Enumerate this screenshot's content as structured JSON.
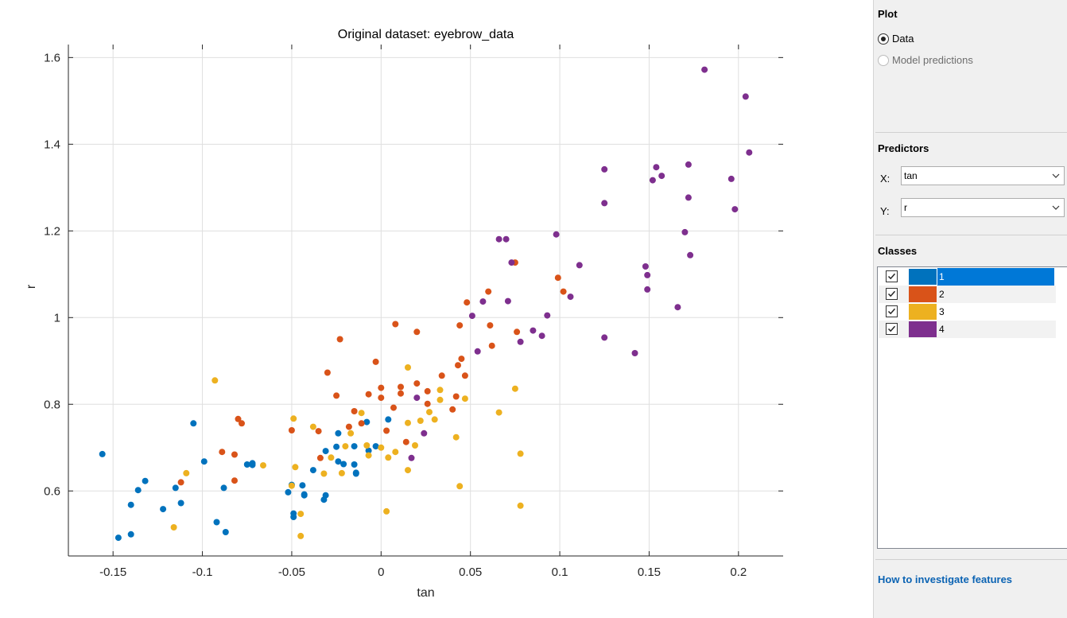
{
  "chart_data": {
    "type": "scatter",
    "title": "Original dataset: eyebrow_data",
    "xlabel": "tan",
    "ylabel": "r",
    "xlim": [
      -0.175,
      0.225
    ],
    "ylim": [
      0.45,
      1.63
    ],
    "xticks": [
      -0.15,
      -0.1,
      -0.05,
      0,
      0.05,
      0.1,
      0.15,
      0.2
    ],
    "xtick_labels": [
      "-0.15",
      "-0.1",
      "-0.05",
      "0",
      "0.05",
      "0.1",
      "0.15",
      "0.2"
    ],
    "yticks": [
      0.6,
      0.8,
      1.0,
      1.2,
      1.4,
      1.6
    ],
    "ytick_labels": [
      "0.6",
      "0.8",
      "1",
      "1.2",
      "1.4",
      "1.6"
    ],
    "grid": true,
    "series": [
      {
        "name": "1",
        "color": "#0072BD",
        "points": [
          [
            -0.156,
            0.685
          ],
          [
            -0.147,
            0.492
          ],
          [
            -0.14,
            0.568
          ],
          [
            -0.14,
            0.5
          ],
          [
            -0.136,
            0.602
          ],
          [
            -0.132,
            0.623
          ],
          [
            -0.122,
            0.558
          ],
          [
            -0.115,
            0.607
          ],
          [
            -0.112,
            0.572
          ],
          [
            -0.105,
            0.756
          ],
          [
            -0.099,
            0.668
          ],
          [
            -0.092,
            0.528
          ],
          [
            -0.088,
            0.607
          ],
          [
            -0.087,
            0.505
          ],
          [
            -0.075,
            0.661
          ],
          [
            -0.072,
            0.664
          ],
          [
            -0.072,
            0.66
          ],
          [
            -0.052,
            0.597
          ],
          [
            -0.05,
            0.614
          ],
          [
            -0.049,
            0.548
          ],
          [
            -0.049,
            0.54
          ],
          [
            -0.044,
            0.613
          ],
          [
            -0.043,
            0.592
          ],
          [
            -0.043,
            0.59
          ],
          [
            -0.038,
            0.648
          ],
          [
            -0.032,
            0.58
          ],
          [
            -0.031,
            0.59
          ],
          [
            -0.031,
            0.692
          ],
          [
            -0.025,
            0.702
          ],
          [
            -0.024,
            0.733
          ],
          [
            -0.024,
            0.668
          ],
          [
            -0.021,
            0.662
          ],
          [
            -0.015,
            0.703
          ],
          [
            -0.015,
            0.661
          ],
          [
            -0.014,
            0.642
          ],
          [
            -0.014,
            0.64
          ],
          [
            -0.008,
            0.759
          ],
          [
            -0.007,
            0.693
          ],
          [
            -0.003,
            0.703
          ],
          [
            0.004,
            0.765
          ]
        ]
      },
      {
        "name": "2",
        "color": "#D95319",
        "points": [
          [
            -0.112,
            0.62
          ],
          [
            -0.089,
            0.69
          ],
          [
            -0.082,
            0.684
          ],
          [
            -0.082,
            0.624
          ],
          [
            -0.08,
            0.766
          ],
          [
            -0.078,
            0.756
          ],
          [
            -0.05,
            0.74
          ],
          [
            -0.035,
            0.738
          ],
          [
            -0.034,
            0.676
          ],
          [
            -0.03,
            0.873
          ],
          [
            -0.025,
            0.82
          ],
          [
            -0.023,
            0.95
          ],
          [
            -0.018,
            0.748
          ],
          [
            -0.015,
            0.784
          ],
          [
            -0.011,
            0.756
          ],
          [
            -0.007,
            0.823
          ],
          [
            -0.003,
            0.898
          ],
          [
            0,
            0.838
          ],
          [
            0,
            0.815
          ],
          [
            0.003,
            0.739
          ],
          [
            0.007,
            0.792
          ],
          [
            0.008,
            0.985
          ],
          [
            0.011,
            0.84
          ],
          [
            0.011,
            0.825
          ],
          [
            0.014,
            0.713
          ],
          [
            0.02,
            0.967
          ],
          [
            0.02,
            0.848
          ],
          [
            0.026,
            0.83
          ],
          [
            0.026,
            0.801
          ],
          [
            0.034,
            0.866
          ],
          [
            0.04,
            0.788
          ],
          [
            0.042,
            0.818
          ],
          [
            0.043,
            0.89
          ],
          [
            0.044,
            0.982
          ],
          [
            0.045,
            0.905
          ],
          [
            0.047,
            0.866
          ],
          [
            0.048,
            1.035
          ],
          [
            0.06,
            1.06
          ],
          [
            0.061,
            0.982
          ],
          [
            0.062,
            0.935
          ],
          [
            0.075,
            1.127
          ],
          [
            0.076,
            0.967
          ],
          [
            0.099,
            1.092
          ],
          [
            0.102,
            1.06
          ]
        ]
      },
      {
        "name": "3",
        "color": "#EDB120",
        "points": [
          [
            -0.116,
            0.516
          ],
          [
            -0.109,
            0.641
          ],
          [
            -0.093,
            0.855
          ],
          [
            -0.066,
            0.659
          ],
          [
            -0.05,
            0.612
          ],
          [
            -0.049,
            0.767
          ],
          [
            -0.048,
            0.655
          ],
          [
            -0.045,
            0.496
          ],
          [
            -0.045,
            0.547
          ],
          [
            -0.038,
            0.748
          ],
          [
            -0.032,
            0.64
          ],
          [
            -0.028,
            0.677
          ],
          [
            -0.022,
            0.641
          ],
          [
            -0.02,
            0.703
          ],
          [
            -0.017,
            0.733
          ],
          [
            -0.011,
            0.78
          ],
          [
            -0.008,
            0.705
          ],
          [
            -0.007,
            0.682
          ],
          [
            0,
            0.7
          ],
          [
            0.003,
            0.553
          ],
          [
            0.004,
            0.677
          ],
          [
            0.008,
            0.69
          ],
          [
            0.015,
            0.648
          ],
          [
            0.015,
            0.757
          ],
          [
            0.015,
            0.885
          ],
          [
            0.019,
            0.705
          ],
          [
            0.022,
            0.762
          ],
          [
            0.027,
            0.782
          ],
          [
            0.03,
            0.765
          ],
          [
            0.033,
            0.833
          ],
          [
            0.033,
            0.81
          ],
          [
            0.042,
            0.724
          ],
          [
            0.044,
            0.611
          ],
          [
            0.047,
            0.813
          ],
          [
            0.066,
            0.781
          ],
          [
            0.075,
            0.836
          ],
          [
            0.078,
            0.566
          ],
          [
            0.078,
            0.686
          ]
        ]
      },
      {
        "name": "4",
        "color": "#7E2F8E",
        "points": [
          [
            0.017,
            0.676
          ],
          [
            0.02,
            0.815
          ],
          [
            0.024,
            0.733
          ],
          [
            0.051,
            1.004
          ],
          [
            0.054,
            0.922
          ],
          [
            0.057,
            1.037
          ],
          [
            0.066,
            1.181
          ],
          [
            0.07,
            1.181
          ],
          [
            0.071,
            1.038
          ],
          [
            0.073,
            1.127
          ],
          [
            0.078,
            0.944
          ],
          [
            0.085,
            0.97
          ],
          [
            0.09,
            0.958
          ],
          [
            0.093,
            1.005
          ],
          [
            0.098,
            1.192
          ],
          [
            0.106,
            1.048
          ],
          [
            0.111,
            1.121
          ],
          [
            0.125,
            0.954
          ],
          [
            0.125,
            1.264
          ],
          [
            0.125,
            1.342
          ],
          [
            0.142,
            0.918
          ],
          [
            0.148,
            1.118
          ],
          [
            0.149,
            1.098
          ],
          [
            0.149,
            1.065
          ],
          [
            0.152,
            1.317
          ],
          [
            0.154,
            1.347
          ],
          [
            0.157,
            1.327
          ],
          [
            0.166,
            1.024
          ],
          [
            0.17,
            1.197
          ],
          [
            0.172,
            1.277
          ],
          [
            0.172,
            1.353
          ],
          [
            0.173,
            1.144
          ],
          [
            0.181,
            1.572
          ],
          [
            0.196,
            1.32
          ],
          [
            0.198,
            1.25
          ],
          [
            0.204,
            1.51
          ],
          [
            0.206,
            1.381
          ]
        ]
      }
    ]
  },
  "panel": {
    "plot": {
      "title": "Plot",
      "data_label": "Data",
      "model_label": "Model predictions"
    },
    "predictors": {
      "title": "Predictors",
      "x_label": "X:",
      "x_value": "tan",
      "y_label": "Y:",
      "y_value": "r"
    },
    "classes": {
      "title": "Classes",
      "items": [
        {
          "label": "1",
          "color": "#0072BD"
        },
        {
          "label": "2",
          "color": "#D95319"
        },
        {
          "label": "3",
          "color": "#EDB120"
        },
        {
          "label": "4",
          "color": "#7E2F8E"
        }
      ]
    },
    "help_link": "How to investigate features"
  }
}
